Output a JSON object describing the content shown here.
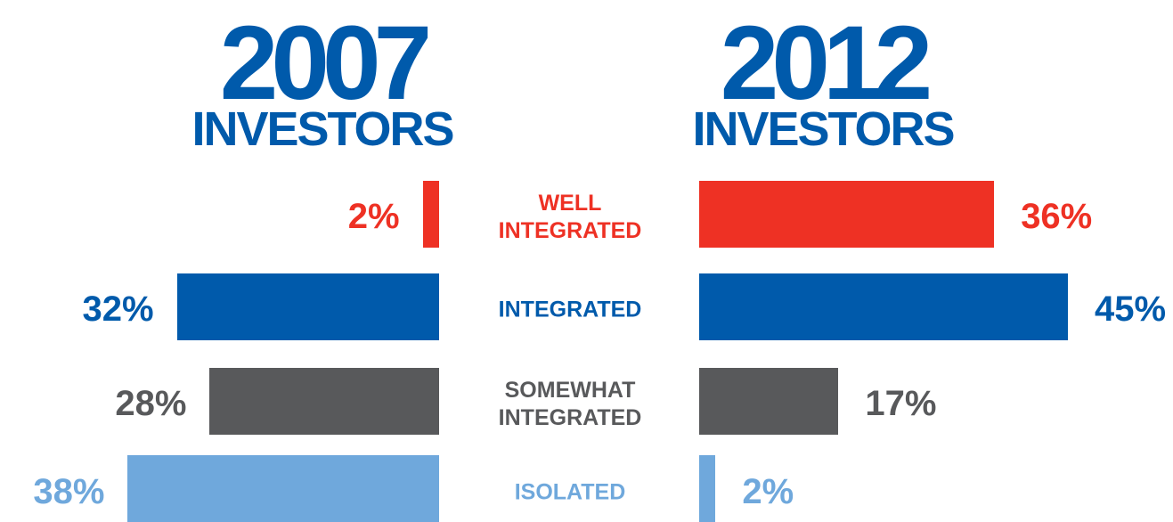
{
  "chart_data": {
    "type": "bar",
    "orientation": "horizontal",
    "categories": [
      "WELL INTEGRATED",
      "INTEGRATED",
      "SOMEWHAT INTEGRATED",
      "ISOLATED"
    ],
    "colors": [
      "#ee3124",
      "#005aab",
      "#58595b",
      "#6fa8dc"
    ],
    "title_color": "#005aab",
    "series": [
      {
        "name": "2007",
        "subtitle": "INVESTORS",
        "values": [
          2,
          32,
          28,
          38
        ],
        "value_labels": [
          "2%",
          "32%",
          "28%",
          "38%"
        ]
      },
      {
        "name": "2012",
        "subtitle": "INVESTORS",
        "values": [
          36,
          45,
          17,
          2
        ],
        "value_labels": [
          "36%",
          "45%",
          "17%",
          "2%"
        ]
      }
    ]
  }
}
